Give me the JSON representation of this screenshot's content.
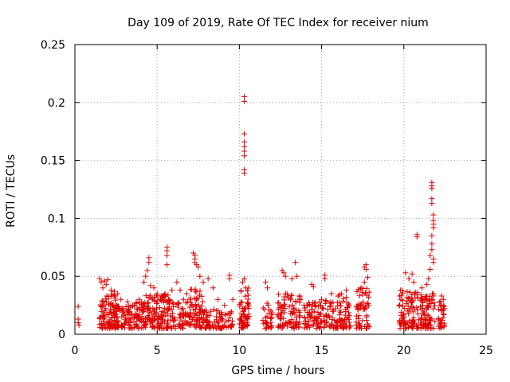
{
  "chart_data": {
    "type": "scatter",
    "title": "Day 109 of 2019, Rate Of TEC Index for receiver nium",
    "xlabel": "GPS time / hours",
    "ylabel": "ROTI / TECUs",
    "xlim": [
      0,
      25
    ],
    "ylim": [
      0,
      0.25
    ],
    "xticks": [
      0,
      5,
      10,
      15,
      20,
      25
    ],
    "xtick_labels": [
      "0",
      "5",
      "10",
      "15",
      "20",
      "25"
    ],
    "yticks": [
      0,
      0.05,
      0.1,
      0.15,
      0.2,
      0.25
    ],
    "ytick_labels": [
      "0",
      "0.05",
      "0.1",
      "0.15",
      "0.2",
      "0.25"
    ],
    "grid": true,
    "marker": "+",
    "marker_color": "#e00000",
    "series": [
      {
        "name": "ROTI",
        "points": [
          [
            0.2,
            0.024
          ],
          [
            0.2,
            0.013
          ],
          [
            0.2,
            0.01
          ],
          [
            0.25,
            0.008
          ],
          [
            1.5,
            0.048
          ],
          [
            1.6,
            0.045
          ],
          [
            1.7,
            0.04
          ],
          [
            1.8,
            0.046
          ],
          [
            1.9,
            0.043
          ],
          [
            2.0,
            0.047
          ],
          [
            2.2,
            0.038
          ],
          [
            2.4,
            0.037
          ],
          [
            2.6,
            0.035
          ],
          [
            2.8,
            0.03
          ],
          [
            3.2,
            0.028
          ],
          [
            3.5,
            0.025
          ],
          [
            3.9,
            0.03
          ],
          [
            4.2,
            0.045
          ],
          [
            4.3,
            0.05
          ],
          [
            4.4,
            0.055
          ],
          [
            4.5,
            0.062
          ],
          [
            4.5,
            0.066
          ],
          [
            4.6,
            0.042
          ],
          [
            4.8,
            0.04
          ],
          [
            5.0,
            0.035
          ],
          [
            5.2,
            0.03
          ],
          [
            5.4,
            0.028
          ],
          [
            5.6,
            0.075
          ],
          [
            5.6,
            0.072
          ],
          [
            5.6,
            0.068
          ],
          [
            5.6,
            0.06
          ],
          [
            5.9,
            0.038
          ],
          [
            6.2,
            0.045
          ],
          [
            6.4,
            0.038
          ],
          [
            6.6,
            0.03
          ],
          [
            6.8,
            0.035
          ],
          [
            7.0,
            0.03
          ],
          [
            7.2,
            0.07
          ],
          [
            7.3,
            0.068
          ],
          [
            7.3,
            0.065
          ],
          [
            7.3,
            0.062
          ],
          [
            7.4,
            0.06
          ],
          [
            7.5,
            0.058
          ],
          [
            7.6,
            0.05
          ],
          [
            7.8,
            0.045
          ],
          [
            8.1,
            0.048
          ],
          [
            8.4,
            0.04
          ],
          [
            8.7,
            0.03
          ],
          [
            9.1,
            0.025
          ],
          [
            9.4,
            0.051
          ],
          [
            9.4,
            0.048
          ],
          [
            9.6,
            0.03
          ],
          [
            10.3,
            0.205
          ],
          [
            10.3,
            0.201
          ],
          [
            10.3,
            0.173
          ],
          [
            10.3,
            0.166
          ],
          [
            10.3,
            0.162
          ],
          [
            10.3,
            0.158
          ],
          [
            10.3,
            0.154
          ],
          [
            10.3,
            0.142
          ],
          [
            10.3,
            0.139
          ],
          [
            10.3,
            0.048
          ],
          [
            10.2,
            0.045
          ],
          [
            10.4,
            0.04
          ],
          [
            11.6,
            0.045
          ],
          [
            11.7,
            0.04
          ],
          [
            12.6,
            0.055
          ],
          [
            12.7,
            0.053
          ],
          [
            12.8,
            0.05
          ],
          [
            13.2,
            0.048
          ],
          [
            13.4,
            0.062
          ],
          [
            13.5,
            0.05
          ],
          [
            14.4,
            0.043
          ],
          [
            14.5,
            0.041
          ],
          [
            15.0,
            0.03
          ],
          [
            15.2,
            0.051
          ],
          [
            15.2,
            0.048
          ],
          [
            15.6,
            0.035
          ],
          [
            16.2,
            0.035
          ],
          [
            16.5,
            0.038
          ],
          [
            17.4,
            0.04
          ],
          [
            17.6,
            0.045
          ],
          [
            17.6,
            0.058
          ],
          [
            17.7,
            0.06
          ],
          [
            17.7,
            0.056
          ],
          [
            17.8,
            0.049
          ],
          [
            19.8,
            0.038
          ],
          [
            20.1,
            0.053
          ],
          [
            20.3,
            0.048
          ],
          [
            20.5,
            0.052
          ],
          [
            20.6,
            0.045
          ],
          [
            20.8,
            0.086
          ],
          [
            20.8,
            0.084
          ],
          [
            21.1,
            0.04
          ],
          [
            21.4,
            0.043
          ],
          [
            21.5,
            0.048
          ],
          [
            21.6,
            0.056
          ],
          [
            21.7,
            0.131
          ],
          [
            21.7,
            0.128
          ],
          [
            21.7,
            0.126
          ],
          [
            21.7,
            0.117
          ],
          [
            21.7,
            0.113
          ],
          [
            21.8,
            0.103
          ],
          [
            21.8,
            0.098
          ],
          [
            21.8,
            0.095
          ],
          [
            21.8,
            0.092
          ],
          [
            21.7,
            0.085
          ],
          [
            21.7,
            0.078
          ],
          [
            21.7,
            0.073
          ],
          [
            21.6,
            0.068
          ],
          [
            21.8,
            0.065
          ],
          [
            21.8,
            0.062
          ],
          [
            22.3,
            0.033
          ],
          [
            22.4,
            0.03
          ]
        ],
        "clusters": [
          {
            "x_range": [
              1.5,
              2.5
            ],
            "y_range": [
              0.005,
              0.035
            ],
            "count": 90
          },
          {
            "x_range": [
              2.5,
              3.5
            ],
            "y_range": [
              0.005,
              0.025
            ],
            "count": 70
          },
          {
            "x_range": [
              3.5,
              4.3
            ],
            "y_range": [
              0.005,
              0.028
            ],
            "count": 60
          },
          {
            "x_range": [
              4.3,
              5.8
            ],
            "y_range": [
              0.005,
              0.035
            ],
            "count": 120
          },
          {
            "x_range": [
              5.8,
              7.0
            ],
            "y_range": [
              0.005,
              0.028
            ],
            "count": 60
          },
          {
            "x_range": [
              7.0,
              7.8
            ],
            "y_range": [
              0.005,
              0.04
            ],
            "count": 70
          },
          {
            "x_range": [
              7.8,
              9.0
            ],
            "y_range": [
              0.005,
              0.022
            ],
            "count": 60
          },
          {
            "x_range": [
              9.0,
              9.6
            ],
            "y_range": [
              0.005,
              0.02
            ],
            "count": 20
          },
          {
            "x_range": [
              10.0,
              10.6
            ],
            "y_range": [
              0.005,
              0.04
            ],
            "count": 60
          },
          {
            "x_range": [
              11.4,
              12.0
            ],
            "y_range": [
              0.005,
              0.028
            ],
            "count": 30
          },
          {
            "x_range": [
              12.3,
              13.7
            ],
            "y_range": [
              0.005,
              0.035
            ],
            "count": 90
          },
          {
            "x_range": [
              13.9,
              15.1
            ],
            "y_range": [
              0.005,
              0.028
            ],
            "count": 70
          },
          {
            "x_range": [
              15.1,
              16.0
            ],
            "y_range": [
              0.005,
              0.03
            ],
            "count": 50
          },
          {
            "x_range": [
              16.0,
              16.8
            ],
            "y_range": [
              0.005,
              0.035
            ],
            "count": 50
          },
          {
            "x_range": [
              17.1,
              17.9
            ],
            "y_range": [
              0.005,
              0.04
            ],
            "count": 60
          },
          {
            "x_range": [
              19.7,
              20.9
            ],
            "y_range": [
              0.005,
              0.038
            ],
            "count": 90
          },
          {
            "x_range": [
              21.0,
              21.9
            ],
            "y_range": [
              0.005,
              0.035
            ],
            "count": 80
          },
          {
            "x_range": [
              22.1,
              22.5
            ],
            "y_range": [
              0.005,
              0.03
            ],
            "count": 30
          }
        ]
      }
    ]
  }
}
